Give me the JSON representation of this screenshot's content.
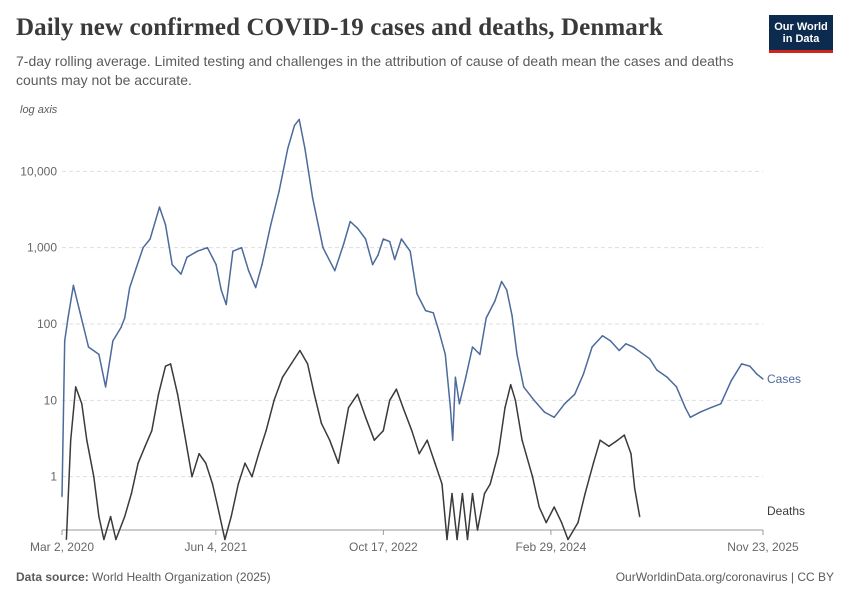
{
  "header": {
    "title": "Daily new confirmed COVID-19 cases and deaths, Denmark",
    "subtitle": "7-day rolling average. Limited testing and challenges in the attribution of cause of death mean the cases and deaths counts may not be accurate.",
    "logo_line1": "Our World",
    "logo_line2": "in Data"
  },
  "footer": {
    "source_label": "Data source:",
    "source_value": "World Health Organization (2025)",
    "right": "OurWorldinData.org/coronavirus | CC BY"
  },
  "colors": {
    "cases": "#4c6a9c",
    "deaths": "#3a3a3a",
    "grid": "#dddddd",
    "logo_bg": "#0c2b4e",
    "logo_accent": "#ce261e"
  },
  "chart_data": {
    "type": "line",
    "y_scale": "log",
    "y_scale_label": "log axis",
    "y_ticks": [
      1,
      10,
      100,
      1000,
      10000
    ],
    "y_tick_labels": [
      "1",
      "10",
      "100",
      "1,000",
      "10,000"
    ],
    "x_tick_labels": [
      "Mar 2, 2020",
      "Jun 4, 2021",
      "Oct 17, 2022",
      "Feb 29, 2024",
      "Nov 23, 2025"
    ],
    "x_ticks": [
      "2020-03-02",
      "2021-06-04",
      "2022-10-17",
      "2024-02-29",
      "2025-11-23"
    ],
    "xlim": [
      "2020-03-02",
      "2025-11-23"
    ],
    "ylim": [
      0.2,
      50000
    ],
    "grid": true,
    "series": [
      {
        "name": "Cases",
        "points": [
          [
            "2020-03-02",
            0.55
          ],
          [
            "2020-03-10",
            60
          ],
          [
            "2020-03-20",
            120
          ],
          [
            "2020-04-05",
            320
          ],
          [
            "2020-04-25",
            140
          ],
          [
            "2020-05-20",
            50
          ],
          [
            "2020-06-20",
            40
          ],
          [
            "2020-07-10",
            15
          ],
          [
            "2020-08-01",
            60
          ],
          [
            "2020-08-25",
            90
          ],
          [
            "2020-09-05",
            120
          ],
          [
            "2020-09-20",
            300
          ],
          [
            "2020-10-10",
            550
          ],
          [
            "2020-10-30",
            1000
          ],
          [
            "2020-11-20",
            1300
          ],
          [
            "2020-12-18",
            3400
          ],
          [
            "2021-01-05",
            2000
          ],
          [
            "2021-01-25",
            600
          ],
          [
            "2021-02-20",
            450
          ],
          [
            "2021-03-10",
            750
          ],
          [
            "2021-04-10",
            900
          ],
          [
            "2021-05-10",
            1000
          ],
          [
            "2021-06-05",
            600
          ],
          [
            "2021-06-20",
            280
          ],
          [
            "2021-07-05",
            180
          ],
          [
            "2021-07-25",
            900
          ],
          [
            "2021-08-20",
            1000
          ],
          [
            "2021-09-10",
            500
          ],
          [
            "2021-10-01",
            300
          ],
          [
            "2021-10-20",
            600
          ],
          [
            "2021-11-15",
            2000
          ],
          [
            "2021-12-10",
            5500
          ],
          [
            "2022-01-05",
            20000
          ],
          [
            "2022-01-25",
            40000
          ],
          [
            "2022-02-08",
            48000
          ],
          [
            "2022-02-25",
            20000
          ],
          [
            "2022-03-20",
            4500
          ],
          [
            "2022-04-20",
            1000
          ],
          [
            "2022-05-25",
            500
          ],
          [
            "2022-06-20",
            1100
          ],
          [
            "2022-07-10",
            2200
          ],
          [
            "2022-08-01",
            1800
          ],
          [
            "2022-08-25",
            1300
          ],
          [
            "2022-09-15",
            600
          ],
          [
            "2022-10-01",
            800
          ],
          [
            "2022-10-17",
            1300
          ],
          [
            "2022-11-05",
            1200
          ],
          [
            "2022-11-20",
            700
          ],
          [
            "2022-12-10",
            1300
          ],
          [
            "2023-01-05",
            900
          ],
          [
            "2023-01-25",
            250
          ],
          [
            "2023-02-20",
            150
          ],
          [
            "2023-03-15",
            140
          ],
          [
            "2023-04-01",
            80
          ],
          [
            "2023-04-20",
            40
          ],
          [
            "2023-05-05",
            8
          ],
          [
            "2023-05-12",
            3
          ],
          [
            "2023-05-20",
            20
          ],
          [
            "2023-06-01",
            9
          ],
          [
            "2023-06-20",
            20
          ],
          [
            "2023-07-10",
            50
          ],
          [
            "2023-08-01",
            40
          ],
          [
            "2023-08-20",
            120
          ],
          [
            "2023-09-15",
            200
          ],
          [
            "2023-10-05",
            360
          ],
          [
            "2023-10-20",
            280
          ],
          [
            "2023-11-05",
            130
          ],
          [
            "2023-11-20",
            40
          ],
          [
            "2023-12-10",
            15
          ],
          [
            "2024-01-10",
            10
          ],
          [
            "2024-02-10",
            7
          ],
          [
            "2024-03-10",
            6
          ],
          [
            "2024-04-10",
            9
          ],
          [
            "2024-05-10",
            12
          ],
          [
            "2024-06-05",
            22
          ],
          [
            "2024-07-01",
            50
          ],
          [
            "2024-08-01",
            70
          ],
          [
            "2024-08-25",
            60
          ],
          [
            "2024-09-20",
            45
          ],
          [
            "2024-10-10",
            55
          ],
          [
            "2024-11-01",
            50
          ],
          [
            "2024-11-25",
            42
          ],
          [
            "2024-12-20",
            35
          ],
          [
            "2025-01-10",
            25
          ],
          [
            "2025-02-10",
            20
          ],
          [
            "2025-03-10",
            15
          ],
          [
            "2025-04-05",
            8
          ],
          [
            "2025-04-20",
            6
          ],
          [
            "2025-05-20",
            7
          ],
          [
            "2025-06-20",
            8
          ],
          [
            "2025-07-20",
            9
          ],
          [
            "2025-08-20",
            18
          ],
          [
            "2025-09-20",
            30
          ],
          [
            "2025-10-15",
            28
          ],
          [
            "2025-11-05",
            22
          ],
          [
            "2025-11-23",
            19
          ]
        ]
      },
      {
        "name": "Deaths",
        "points": [
          [
            "2020-03-15",
            0.15
          ],
          [
            "2020-03-28",
            3
          ],
          [
            "2020-04-12",
            15
          ],
          [
            "2020-04-30",
            9
          ],
          [
            "2020-05-15",
            3
          ],
          [
            "2020-06-05",
            1
          ],
          [
            "2020-06-20",
            0.3
          ],
          [
            "2020-07-05",
            0.15
          ],
          [
            "2020-07-25",
            0.3
          ],
          [
            "2020-08-10",
            0.15
          ],
          [
            "2020-09-05",
            0.3
          ],
          [
            "2020-09-25",
            0.6
          ],
          [
            "2020-10-15",
            1.5
          ],
          [
            "2020-11-05",
            2.5
          ],
          [
            "2020-11-25",
            4
          ],
          [
            "2020-12-15",
            12
          ],
          [
            "2021-01-05",
            28
          ],
          [
            "2021-01-20",
            30
          ],
          [
            "2021-02-10",
            12
          ],
          [
            "2021-03-01",
            4
          ],
          [
            "2021-03-25",
            1
          ],
          [
            "2021-04-15",
            2
          ],
          [
            "2021-05-05",
            1.5
          ],
          [
            "2021-05-25",
            0.8
          ],
          [
            "2021-06-10",
            0.4
          ],
          [
            "2021-07-01",
            0.15
          ],
          [
            "2021-07-20",
            0.3
          ],
          [
            "2021-08-10",
            0.8
          ],
          [
            "2021-08-30",
            1.5
          ],
          [
            "2021-09-20",
            1
          ],
          [
            "2021-10-10",
            2
          ],
          [
            "2021-11-01",
            4
          ],
          [
            "2021-11-25",
            10
          ],
          [
            "2021-12-20",
            20
          ],
          [
            "2022-01-15",
            30
          ],
          [
            "2022-02-10",
            45
          ],
          [
            "2022-03-05",
            30
          ],
          [
            "2022-03-25",
            12
          ],
          [
            "2022-04-15",
            5
          ],
          [
            "2022-05-10",
            3
          ],
          [
            "2022-06-05",
            1.5
          ],
          [
            "2022-07-05",
            8
          ],
          [
            "2022-08-01",
            12
          ],
          [
            "2022-08-25",
            6
          ],
          [
            "2022-09-20",
            3
          ],
          [
            "2022-10-17",
            4
          ],
          [
            "2022-11-05",
            10
          ],
          [
            "2022-11-25",
            14
          ],
          [
            "2022-12-15",
            8
          ],
          [
            "2023-01-10",
            4
          ],
          [
            "2023-02-01",
            2
          ],
          [
            "2023-02-25",
            3
          ],
          [
            "2023-03-20",
            1.5
          ],
          [
            "2023-04-10",
            0.8
          ],
          [
            "2023-04-25",
            0.15
          ],
          [
            "2023-05-10",
            0.6
          ],
          [
            "2023-05-25",
            0.15
          ],
          [
            "2023-06-10",
            0.6
          ],
          [
            "2023-06-25",
            0.15
          ],
          [
            "2023-07-10",
            0.6
          ],
          [
            "2023-07-25",
            0.2
          ],
          [
            "2023-08-15",
            0.6
          ],
          [
            "2023-09-01",
            0.8
          ],
          [
            "2023-09-25",
            2
          ],
          [
            "2023-10-15",
            8
          ],
          [
            "2023-11-01",
            16
          ],
          [
            "2023-11-15",
            10
          ],
          [
            "2023-12-05",
            3
          ],
          [
            "2024-01-05",
            1
          ],
          [
            "2024-01-25",
            0.4
          ],
          [
            "2024-02-15",
            0.25
          ],
          [
            "2024-03-10",
            0.4
          ],
          [
            "2024-04-01",
            0.25
          ],
          [
            "2024-04-20",
            0.15
          ],
          [
            "2024-05-20",
            0.25
          ],
          [
            "2024-06-10",
            0.6
          ],
          [
            "2024-07-05",
            1.5
          ],
          [
            "2024-07-25",
            3
          ],
          [
            "2024-08-20",
            2.5
          ],
          [
            "2024-09-15",
            3
          ],
          [
            "2024-10-05",
            3.5
          ],
          [
            "2024-10-25",
            2
          ],
          [
            "2024-11-05",
            0.7
          ],
          [
            "2024-11-20",
            0.3
          ]
        ]
      }
    ]
  }
}
